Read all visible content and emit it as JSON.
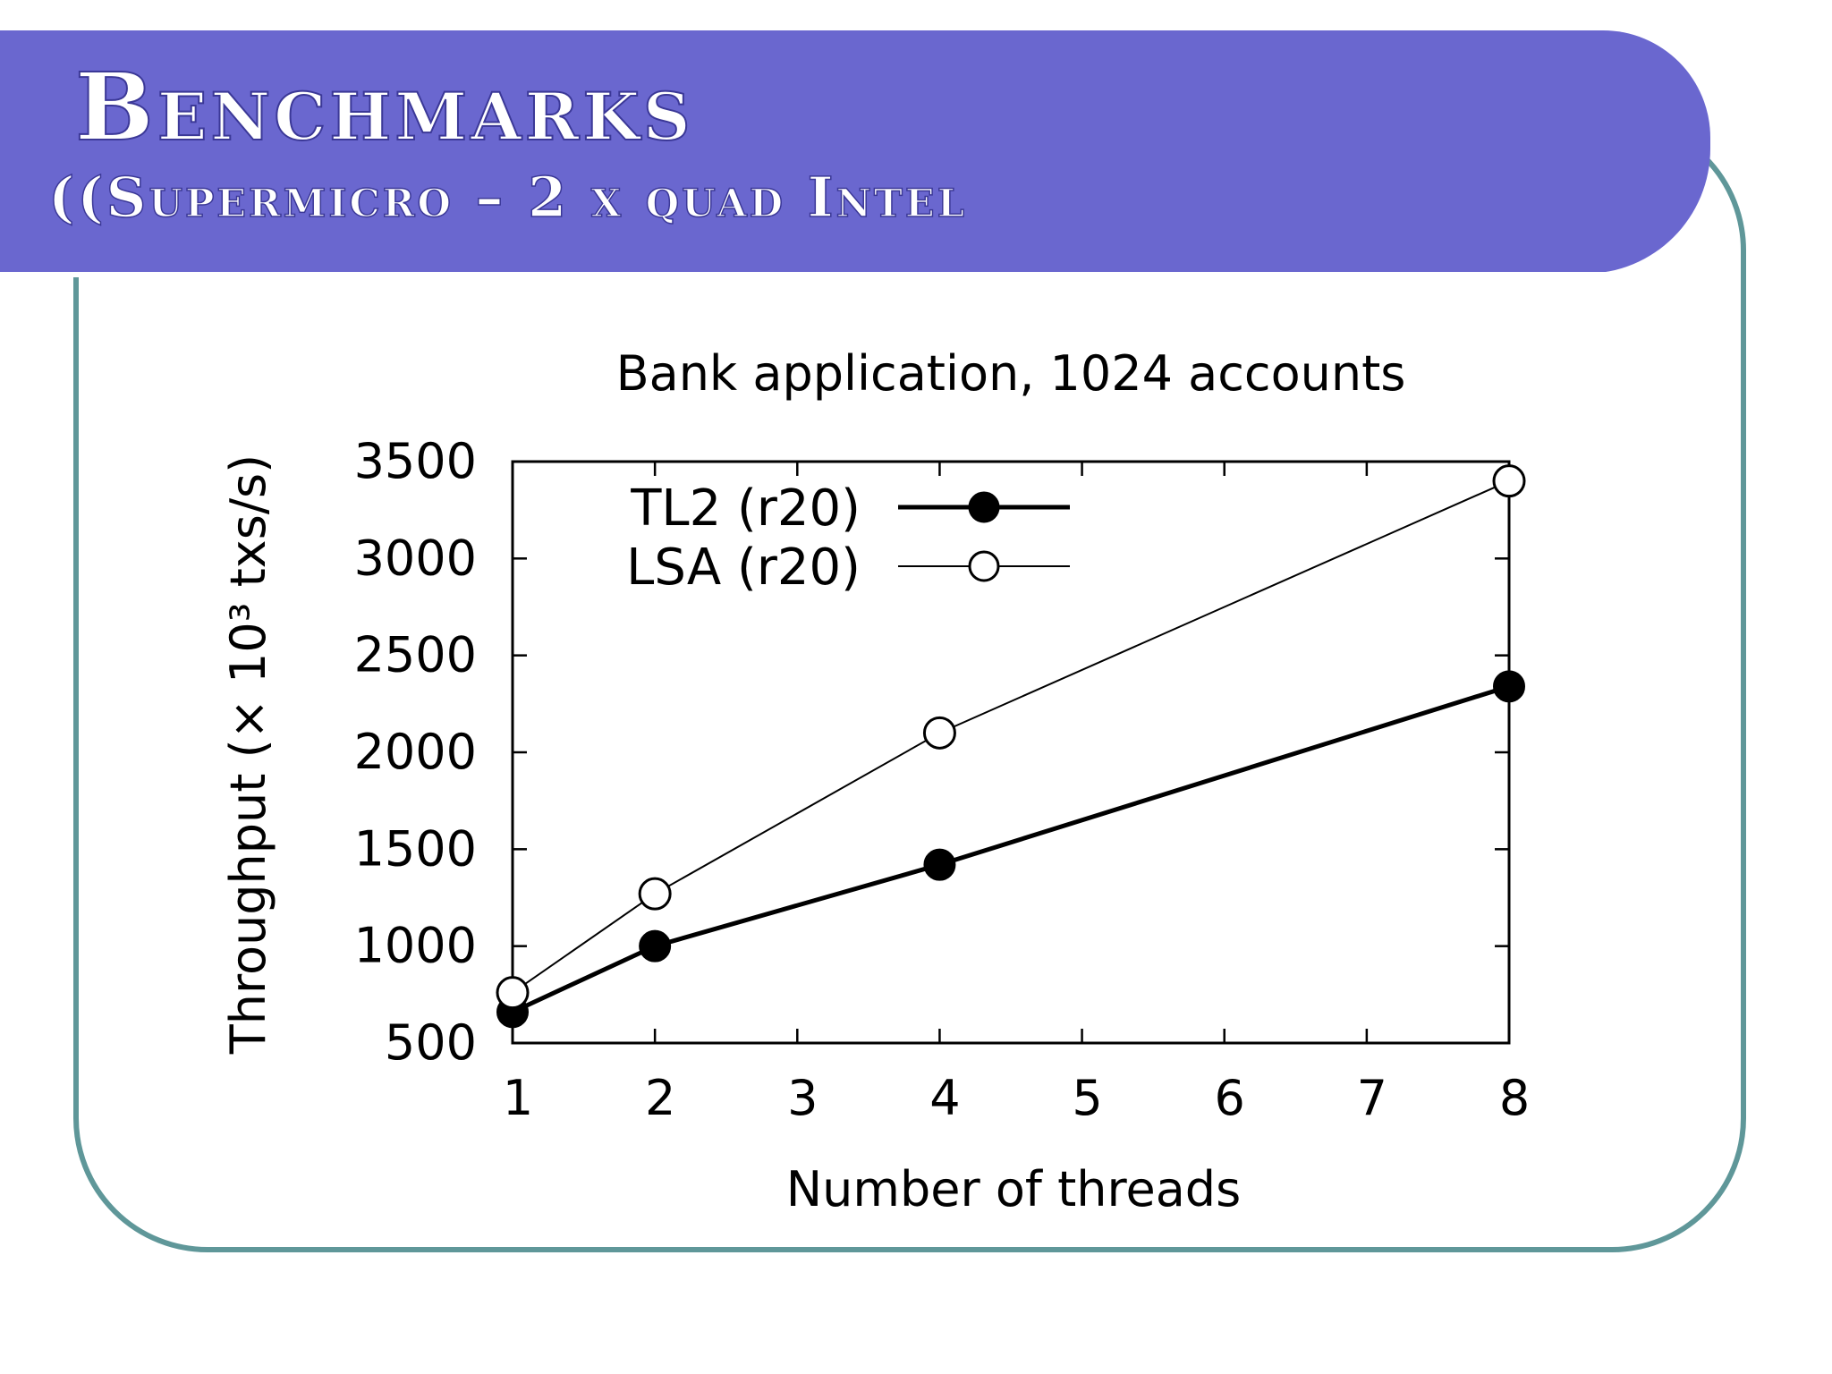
{
  "slide": {
    "title": "Benchmarks",
    "subtitle": "((Supermicro – 2 x quad Intel"
  },
  "colors": {
    "banner": "#6a67cf",
    "frame_border": "#5f9799",
    "background": "#ffffff"
  },
  "chart_data": {
    "type": "line",
    "title": "Bank application, 1024 accounts",
    "xlabel": "Number of threads",
    "ylabel": "Throughput (× 10³ txs/s)",
    "x_ticks": [
      {
        "value": 1,
        "label": "1"
      },
      {
        "value": 2,
        "label": "2"
      },
      {
        "value": 3,
        "label": "3"
      },
      {
        "value": 4,
        "label": "4"
      },
      {
        "value": 5,
        "label": "5"
      },
      {
        "value": 6,
        "label": "6"
      },
      {
        "value": 7,
        "label": "7"
      },
      {
        "value": 8,
        "label": "8"
      }
    ],
    "y_ticks": [
      500,
      1000,
      1500,
      2000,
      2500,
      3000,
      3500
    ],
    "ylim": [
      500,
      3500
    ],
    "x_positions": {
      "1": 0,
      "2": 1,
      "3": 2,
      "4": 3,
      "5": 4,
      "6": 5,
      "7": 6,
      "8": 7
    },
    "legend_position": "top-left",
    "grid": false,
    "series": [
      {
        "name": "TL2 (r20)",
        "marker": "filled-circle",
        "line": "thick",
        "x": [
          1,
          2,
          4,
          8
        ],
        "y": [
          660,
          1000,
          1420,
          2340
        ]
      },
      {
        "name": "LSA (r20)",
        "marker": "open-circle",
        "line": "thin",
        "x": [
          1,
          2,
          4,
          8
        ],
        "y": [
          760,
          1270,
          2100,
          3400
        ]
      }
    ]
  }
}
